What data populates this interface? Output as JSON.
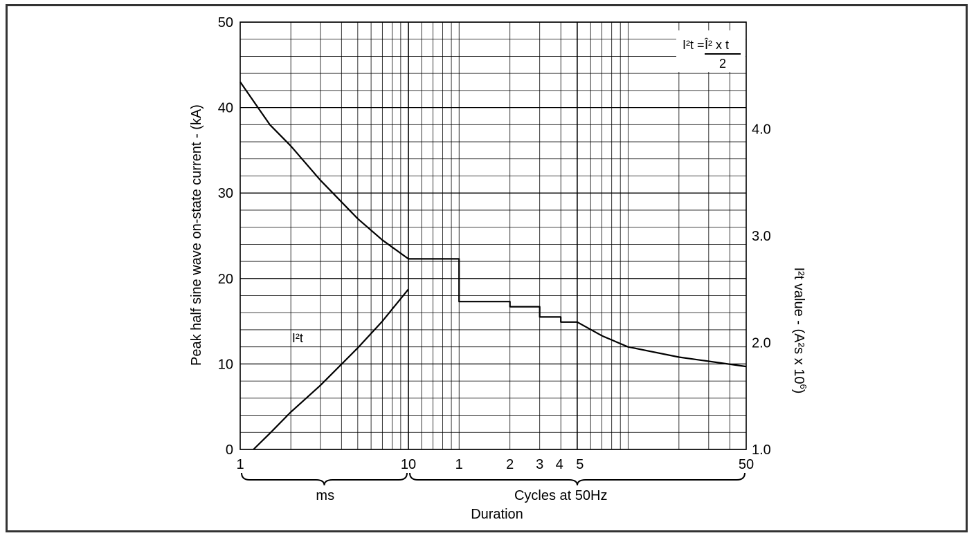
{
  "chart_data": {
    "type": "line",
    "ylabel": "Peak half sine wave on-state current - (kA)",
    "y2label_main": "I²t value - (A²s x 10",
    "y2label_exp": "6",
    "y2label_close": ")",
    "xlabel": "Duration",
    "x_segments": [
      {
        "label": "ms",
        "scale": "log",
        "range": [
          1,
          10
        ]
      },
      {
        "label": "Cycles at 50Hz",
        "scale": "log",
        "range": [
          1,
          50
        ]
      }
    ],
    "x_tick_labels": [
      "1",
      "10",
      "1",
      "2",
      "3",
      "4",
      "5",
      "50"
    ],
    "ylim": [
      0,
      50
    ],
    "y_ticks": [
      "0",
      "10",
      "20",
      "30",
      "40",
      "50"
    ],
    "y2lim": [
      1.0,
      5.0
    ],
    "y2_ticks": [
      "1.0",
      "2.0",
      "3.0",
      "4.0"
    ],
    "grid": true,
    "formula": {
      "lhs": "I²t = ",
      "numerator": "Î² x t",
      "denominator": "2"
    },
    "series": [
      {
        "axis": "left",
        "segment": "ms",
        "points": [
          [
            1,
            43.0
          ],
          [
            1.5,
            38.0
          ],
          [
            2,
            35.5
          ],
          [
            3,
            31.5
          ],
          [
            5,
            27.0
          ],
          [
            7,
            24.5
          ],
          [
            10,
            22.3
          ]
        ]
      },
      {
        "axis": "left",
        "segment": "cycles",
        "points": [
          [
            0.5,
            22.3
          ],
          [
            1,
            22.3
          ],
          [
            1,
            17.3
          ],
          [
            2,
            17.3
          ],
          [
            2,
            16.7
          ],
          [
            3,
            16.7
          ],
          [
            3,
            15.5
          ],
          [
            4,
            15.5
          ],
          [
            4,
            14.9
          ],
          [
            5,
            14.9
          ],
          [
            7,
            13.3
          ],
          [
            10,
            12.0
          ],
          [
            20,
            10.8
          ],
          [
            50,
            9.7
          ]
        ]
      },
      {
        "name": "I²t",
        "axis": "right",
        "segment": "ms",
        "points": [
          [
            1.2,
            1.0
          ],
          [
            1.5,
            1.15
          ],
          [
            2,
            1.35
          ],
          [
            3,
            1.6
          ],
          [
            5,
            1.95
          ],
          [
            7,
            2.2
          ],
          [
            10,
            2.5
          ]
        ]
      }
    ]
  }
}
